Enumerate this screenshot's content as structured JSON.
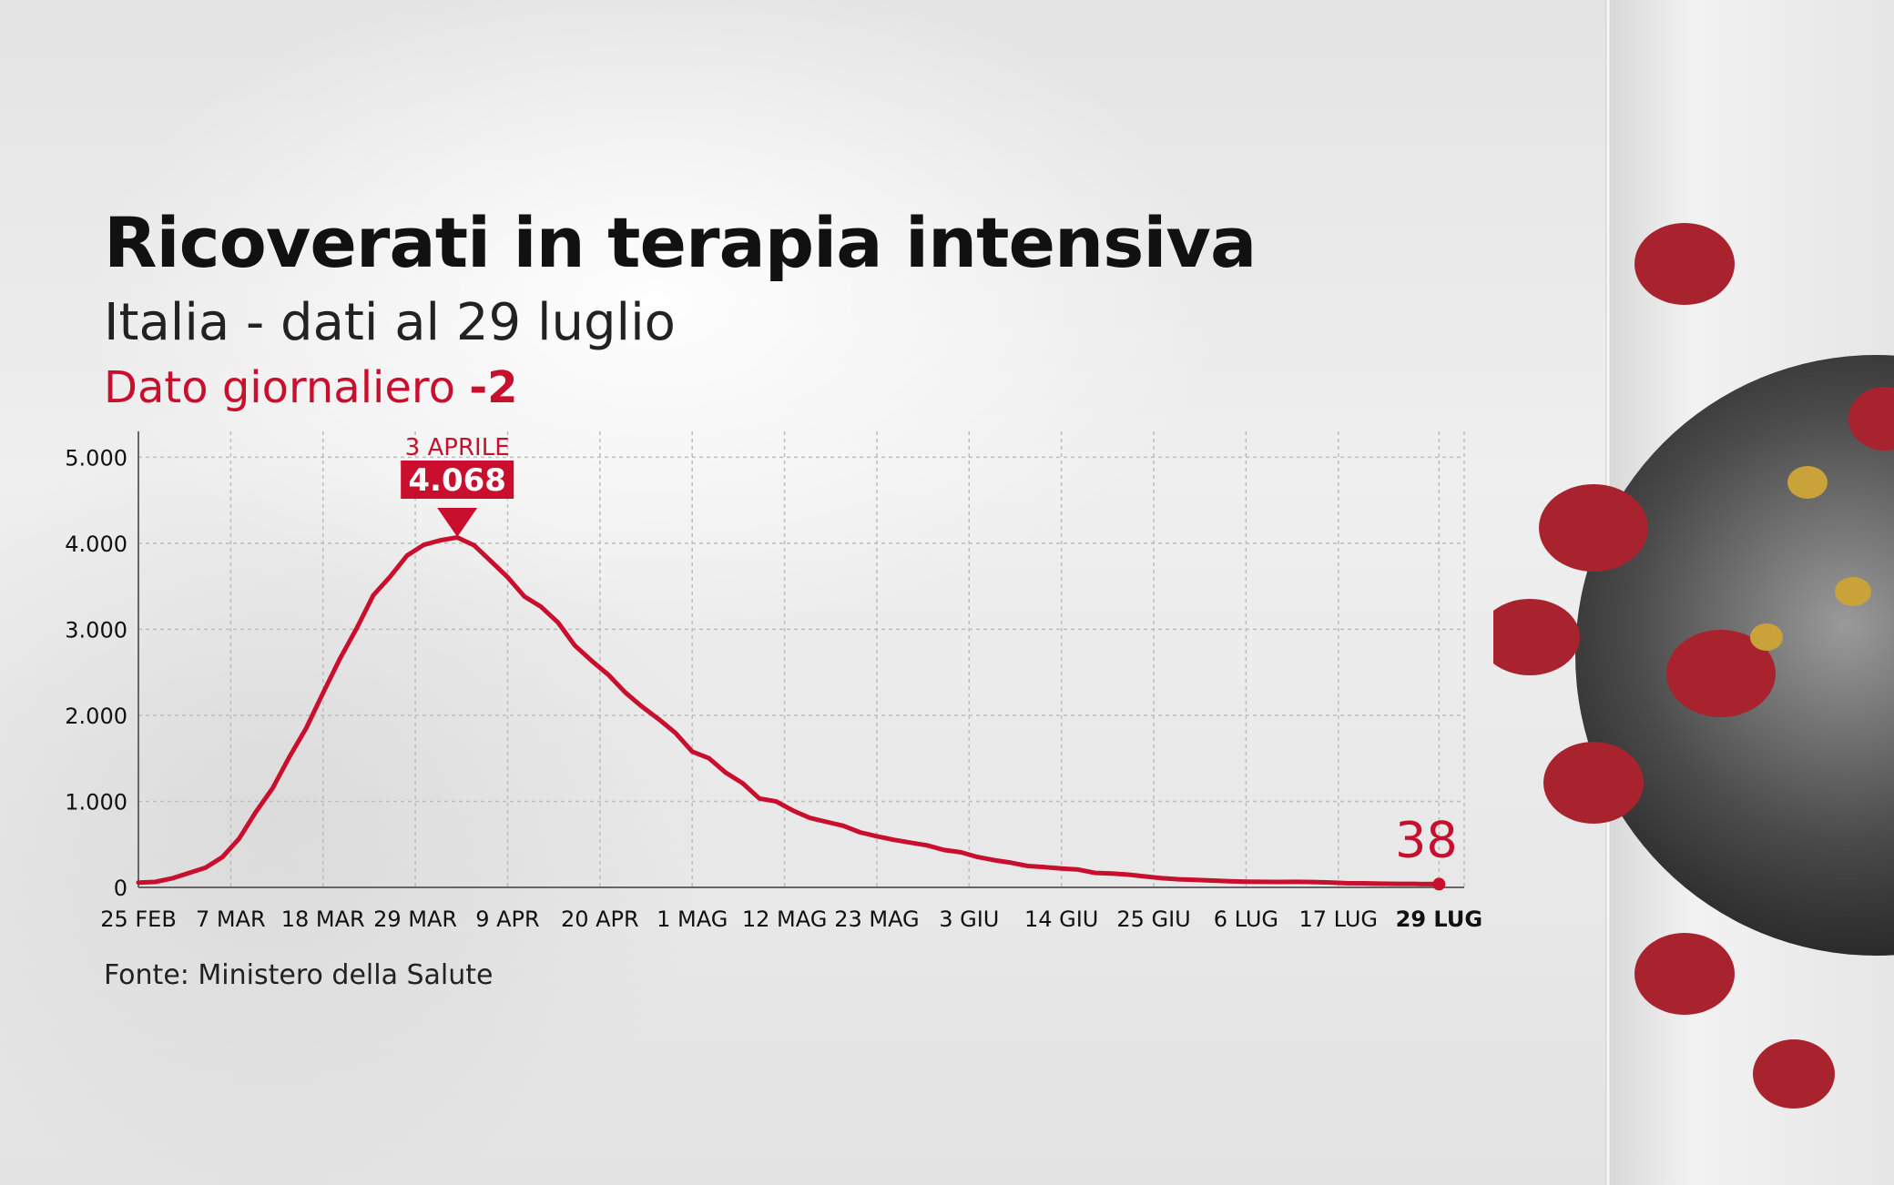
{
  "header": {
    "title": "Ricoverati in terapia intensiva",
    "subtitle": "Italia - dati al 29 luglio",
    "daily_label": "Dato giornaliero",
    "daily_value": "-2"
  },
  "footer": {
    "source": "Fonte: Ministero della Salute"
  },
  "colors": {
    "accent": "#c8102e",
    "text": "#111111",
    "grid": "#bdbdbd"
  },
  "chart_data": {
    "type": "line",
    "title": "Ricoverati in terapia intensiva",
    "subtitle": "Italia - dati al 29 luglio",
    "xlabel": "",
    "ylabel": "",
    "ylim": [
      0,
      5300
    ],
    "yticks": [
      0,
      1000,
      2000,
      3000,
      4000,
      5000
    ],
    "ytick_labels": [
      "0",
      "1.000",
      "2.000",
      "3.000",
      "4.000",
      "5.000"
    ],
    "grid": true,
    "x_start": "2020-02-25",
    "x_end": "2020-07-29",
    "xtick_labels": [
      {
        "date": "2020-02-25",
        "label": "25 FEB",
        "bold": false
      },
      {
        "date": "2020-03-07",
        "label": "7 MAR",
        "bold": false
      },
      {
        "date": "2020-03-18",
        "label": "18 MAR",
        "bold": false
      },
      {
        "date": "2020-03-29",
        "label": "29 MAR",
        "bold": false
      },
      {
        "date": "2020-04-09",
        "label": "9 APR",
        "bold": false
      },
      {
        "date": "2020-04-20",
        "label": "20 APR",
        "bold": false
      },
      {
        "date": "2020-05-01",
        "label": "1 MAG",
        "bold": false
      },
      {
        "date": "2020-05-12",
        "label": "12 MAG",
        "bold": false
      },
      {
        "date": "2020-05-23",
        "label": "23 MAG",
        "bold": false
      },
      {
        "date": "2020-06-03",
        "label": "3 GIU",
        "bold": false
      },
      {
        "date": "2020-06-14",
        "label": "14 GIU",
        "bold": false
      },
      {
        "date": "2020-06-25",
        "label": "25 GIU",
        "bold": false
      },
      {
        "date": "2020-07-06",
        "label": "6 LUG",
        "bold": false
      },
      {
        "date": "2020-07-17",
        "label": "17 LUG",
        "bold": false
      },
      {
        "date": "2020-07-29",
        "label": "29 LUG",
        "bold": true
      }
    ],
    "series": [
      {
        "name": "",
        "color": "#c8102e",
        "points": [
          [
            "2020-02-25",
            56
          ],
          [
            "2020-02-27",
            64
          ],
          [
            "2020-02-29",
            105
          ],
          [
            "2020-03-02",
            166
          ],
          [
            "2020-03-04",
            229
          ],
          [
            "2020-03-06",
            351
          ],
          [
            "2020-03-08",
            567
          ],
          [
            "2020-03-10",
            877
          ],
          [
            "2020-03-12",
            1153
          ],
          [
            "2020-03-14",
            1518
          ],
          [
            "2020-03-16",
            1851
          ],
          [
            "2020-03-18",
            2257
          ],
          [
            "2020-03-20",
            2655
          ],
          [
            "2020-03-22",
            3009
          ],
          [
            "2020-03-24",
            3396
          ],
          [
            "2020-03-26",
            3612
          ],
          [
            "2020-03-28",
            3856
          ],
          [
            "2020-03-30",
            3981
          ],
          [
            "2020-04-01",
            4035
          ],
          [
            "2020-04-03",
            4068
          ],
          [
            "2020-04-05",
            3977
          ],
          [
            "2020-04-07",
            3792
          ],
          [
            "2020-04-09",
            3605
          ],
          [
            "2020-04-11",
            3381
          ],
          [
            "2020-04-13",
            3260
          ],
          [
            "2020-04-15",
            3079
          ],
          [
            "2020-04-17",
            2812
          ],
          [
            "2020-04-19",
            2635
          ],
          [
            "2020-04-21",
            2471
          ],
          [
            "2020-04-23",
            2267
          ],
          [
            "2020-04-25",
            2102
          ],
          [
            "2020-04-27",
            1956
          ],
          [
            "2020-04-29",
            1795
          ],
          [
            "2020-05-01",
            1578
          ],
          [
            "2020-05-03",
            1501
          ],
          [
            "2020-05-05",
            1333
          ],
          [
            "2020-05-07",
            1211
          ],
          [
            "2020-05-09",
            1034
          ],
          [
            "2020-05-11",
            999
          ],
          [
            "2020-05-13",
            893
          ],
          [
            "2020-05-15",
            808
          ],
          [
            "2020-05-17",
            762
          ],
          [
            "2020-05-19",
            716
          ],
          [
            "2020-05-21",
            640
          ],
          [
            "2020-05-23",
            595
          ],
          [
            "2020-05-25",
            553
          ],
          [
            "2020-05-27",
            521
          ],
          [
            "2020-05-29",
            489
          ],
          [
            "2020-05-31",
            435
          ],
          [
            "2020-06-02",
            408
          ],
          [
            "2020-06-04",
            353
          ],
          [
            "2020-06-06",
            316
          ],
          [
            "2020-06-08",
            287
          ],
          [
            "2020-06-10",
            249
          ],
          [
            "2020-06-12",
            236
          ],
          [
            "2020-06-14",
            220
          ],
          [
            "2020-06-16",
            207
          ],
          [
            "2020-06-18",
            168
          ],
          [
            "2020-06-20",
            161
          ],
          [
            "2020-06-22",
            148
          ],
          [
            "2020-06-24",
            127
          ],
          [
            "2020-06-26",
            107
          ],
          [
            "2020-06-28",
            94
          ],
          [
            "2020-06-30",
            87
          ],
          [
            "2020-07-02",
            79
          ],
          [
            "2020-07-04",
            72
          ],
          [
            "2020-07-06",
            67
          ],
          [
            "2020-07-08",
            65
          ],
          [
            "2020-07-10",
            64
          ],
          [
            "2020-07-12",
            65
          ],
          [
            "2020-07-14",
            62
          ],
          [
            "2020-07-16",
            57
          ],
          [
            "2020-07-18",
            49
          ],
          [
            "2020-07-20",
            48
          ],
          [
            "2020-07-22",
            43
          ],
          [
            "2020-07-24",
            41
          ],
          [
            "2020-07-26",
            41
          ],
          [
            "2020-07-27",
            38
          ],
          [
            "2020-07-28",
            40
          ],
          [
            "2020-07-29",
            38
          ]
        ]
      }
    ],
    "annotations": [
      {
        "date": "2020-04-03",
        "value": 4068,
        "label_top": "3 APRILE",
        "label_value": "4.068",
        "type": "peak"
      },
      {
        "date": "2020-07-29",
        "value": 38,
        "label_value": "38",
        "type": "last"
      }
    ]
  }
}
